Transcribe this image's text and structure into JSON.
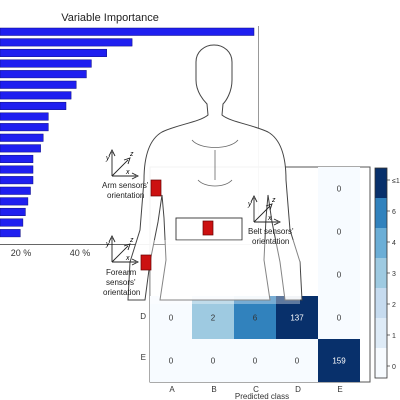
{
  "importance_panel": {
    "title": "Variable Importance",
    "tick_labels": [
      "20 %",
      "40 %"
    ],
    "bar_color": "#1f1ff0"
  },
  "sensor_diagram": {
    "arm_label_line1": "Arm sensors'",
    "arm_label_line2": "orientation",
    "belt_label_line1": "Belt sensors'",
    "belt_label_line2": "orientation",
    "forearm_label_line1": "Forearm",
    "forearm_label_line2": "sensors'",
    "forearm_label_line3": "orientation",
    "sensor_color": "#cc1111",
    "axis_letters": {
      "z": "z",
      "y": "y",
      "x": "x"
    }
  },
  "confusion_panel": {
    "xlabel": "Predicted class",
    "colorbar_ticks": [
      "≤1",
      "6",
      "4",
      "3",
      "2",
      "1",
      "0"
    ],
    "colors": [
      "#f7fbff",
      "#deebf7",
      "#c6dbef",
      "#9ecae1",
      "#6baed6",
      "#3182bd",
      "#08306b"
    ]
  },
  "chart_data": [
    {
      "type": "bar",
      "title": "Variable Importance",
      "orientation": "horizontal",
      "xlim": [
        0,
        50
      ],
      "x_tick_labels": [
        "20 %",
        "40 %"
      ],
      "values": [
        50,
        26,
        21,
        18,
        17,
        15,
        14,
        13,
        9.5,
        9.5,
        8.5,
        8,
        6.5,
        6.5,
        6.5,
        6,
        5.5,
        5,
        4.5,
        4
      ],
      "grid": false
    },
    {
      "type": "heatmap",
      "xlabel": "Predicted class",
      "categories": [
        "A",
        "B",
        "C",
        "D",
        "E"
      ],
      "rows": [
        {
          "label": "",
          "values": [
            null,
            null,
            null,
            null,
            0
          ]
        },
        {
          "label": "",
          "values": [
            null,
            null,
            null,
            null,
            0
          ]
        },
        {
          "label": "",
          "values": [
            null,
            null,
            null,
            null,
            0
          ]
        },
        {
          "label": "D",
          "values": [
            0,
            2,
            6,
            137,
            0
          ]
        },
        {
          "label": "E",
          "values": [
            0,
            0,
            0,
            0,
            159
          ]
        }
      ]
    }
  ]
}
